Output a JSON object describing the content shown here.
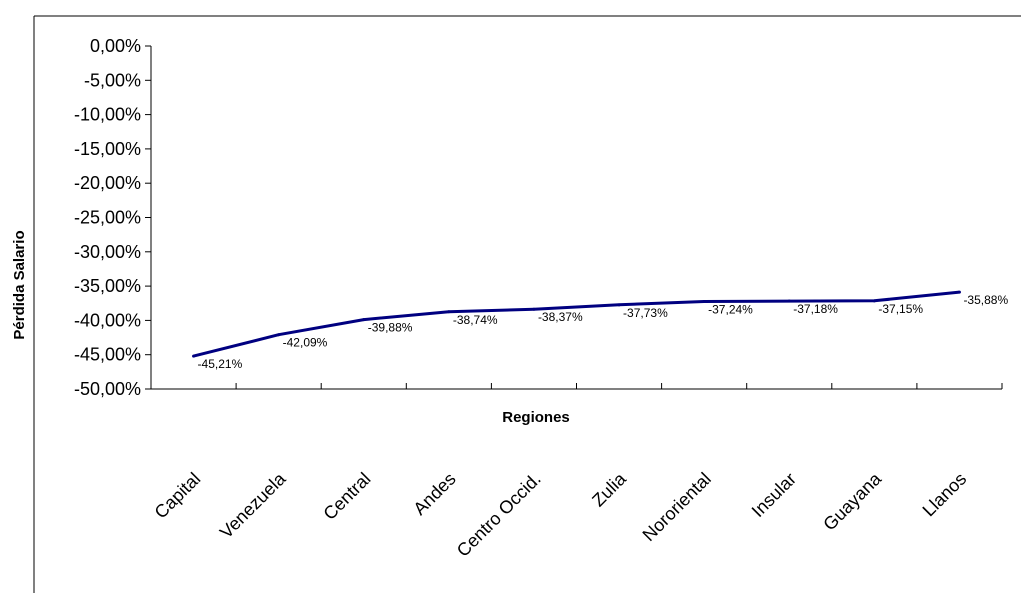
{
  "chart_data": {
    "type": "line",
    "title": "",
    "xlabel": "Regiones",
    "ylabel": "Pérdida Salario",
    "ylim": [
      -0.5,
      0
    ],
    "y_ticks": [
      "0,00%",
      "-5,00%",
      "-10,00%",
      "-15,00%",
      "-20,00%",
      "-25,00%",
      "-30,00%",
      "-35,00%",
      "-40,00%",
      "-45,00%",
      "-50,00%"
    ],
    "categories": [
      "Capital",
      "Venezuela",
      "Central",
      "Andes",
      "Centro Occid.",
      "Zulia",
      "Nororiental",
      "Insular",
      "Guayana",
      "Llanos"
    ],
    "values": [
      -0.4521,
      -0.4209,
      -0.3988,
      -0.3874,
      -0.3837,
      -0.3773,
      -0.3724,
      -0.3718,
      -0.3715,
      -0.3588
    ],
    "data_labels": [
      "-45,21%",
      "-42,09%",
      "-39,88%",
      "-38,74%",
      "-38,37%",
      "-37,73%",
      "-37,24%",
      "-37,18%",
      "-37,15%",
      "-35,88%"
    ],
    "line_color": "#000080",
    "grid": false,
    "legend": "none"
  }
}
